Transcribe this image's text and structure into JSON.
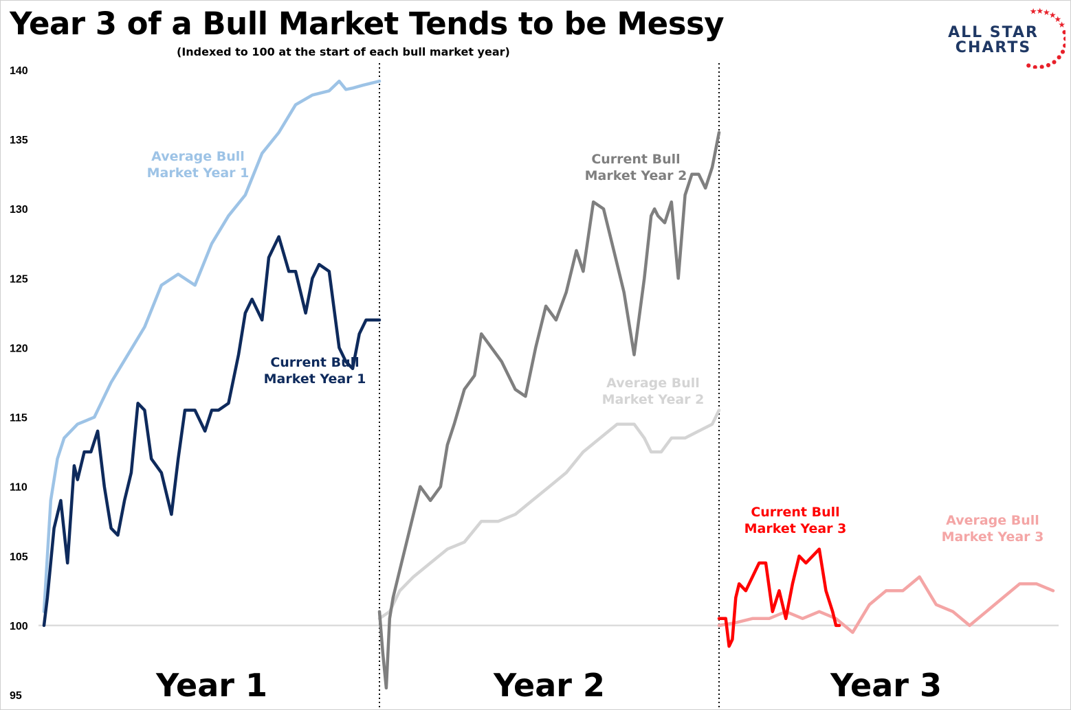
{
  "title": "Year 3 of a Bull Market Tends to be Messy",
  "subtitle": "(Indexed to 100 at the start of each bull market year)",
  "logo": {
    "line1": "ALL STAR",
    "line2": "CHARTS",
    "icon": "star-ring-icon",
    "color": "#1f3864",
    "star_color": "#e8202a"
  },
  "chart_data": {
    "type": "line",
    "y_ticks": [
      95,
      100,
      105,
      110,
      115,
      120,
      125,
      130,
      135,
      140
    ],
    "ylim": [
      95,
      141
    ],
    "baseline": 100,
    "grid": false,
    "segments": [
      {
        "label": "Year 1",
        "range": [
          0,
          1
        ]
      },
      {
        "label": "Year 2",
        "range": [
          1,
          2
        ]
      },
      {
        "label": "Year 3",
        "range": [
          2,
          3
        ]
      }
    ],
    "series": [
      {
        "name": "Average Bull Market Year 1",
        "label_lines": [
          "Average Bull",
          "Market Year 1"
        ],
        "color": "#9dc3e6",
        "segment": 0,
        "x": [
          0,
          0.02,
          0.04,
          0.06,
          0.1,
          0.15,
          0.2,
          0.25,
          0.3,
          0.35,
          0.4,
          0.45,
          0.5,
          0.55,
          0.6,
          0.65,
          0.7,
          0.75,
          0.8,
          0.85,
          0.88,
          0.9,
          0.92,
          0.95,
          1.0
        ],
        "y": [
          101,
          109,
          112,
          113.5,
          114.5,
          115,
          117.5,
          119.5,
          121.5,
          124.5,
          125.3,
          124.5,
          127.5,
          129.5,
          131,
          134,
          135.5,
          137.5,
          138.2,
          138.5,
          139.2,
          138.6,
          138.7,
          138.9,
          139.2
        ]
      },
      {
        "name": "Current Bull Market Year 1",
        "label_lines": [
          "Current Bull",
          "Market Year 1"
        ],
        "color": "#0e2a5c",
        "segment": 0,
        "x": [
          0,
          0.01,
          0.03,
          0.05,
          0.07,
          0.09,
          0.1,
          0.12,
          0.14,
          0.16,
          0.18,
          0.2,
          0.22,
          0.24,
          0.26,
          0.28,
          0.3,
          0.32,
          0.35,
          0.38,
          0.4,
          0.42,
          0.45,
          0.48,
          0.5,
          0.52,
          0.55,
          0.58,
          0.6,
          0.62,
          0.65,
          0.67,
          0.7,
          0.73,
          0.75,
          0.78,
          0.8,
          0.82,
          0.85,
          0.88,
          0.9,
          0.92,
          0.94,
          0.96,
          0.98,
          1.0
        ],
        "y": [
          100,
          102,
          107,
          109,
          104.5,
          111.5,
          110.5,
          112.5,
          112.5,
          114,
          110,
          107,
          106.5,
          109,
          111,
          116,
          115.5,
          112,
          111,
          108,
          112,
          115.5,
          115.5,
          114,
          115.5,
          115.5,
          116,
          119.5,
          122.5,
          123.5,
          122,
          126.5,
          128,
          125.5,
          125.5,
          122.5,
          125,
          126,
          125.5,
          120,
          119,
          118.5,
          121,
          122,
          122,
          122
        ]
      },
      {
        "name": "Current Bull Market Year 2",
        "label_lines": [
          "Current Bull",
          "Market Year 2"
        ],
        "color": "#7f7f7f",
        "segment": 1,
        "x": [
          1.0,
          1.01,
          1.02,
          1.03,
          1.04,
          1.06,
          1.08,
          1.1,
          1.12,
          1.15,
          1.18,
          1.2,
          1.22,
          1.25,
          1.28,
          1.3,
          1.33,
          1.36,
          1.4,
          1.43,
          1.46,
          1.49,
          1.52,
          1.55,
          1.58,
          1.6,
          1.63,
          1.66,
          1.69,
          1.72,
          1.75,
          1.78,
          1.8,
          1.81,
          1.82,
          1.84,
          1.86,
          1.88,
          1.9,
          1.92,
          1.94,
          1.96,
          1.98,
          2.0
        ],
        "y": [
          101,
          98,
          95.5,
          100.5,
          102,
          104,
          106,
          108,
          110,
          109,
          110,
          113,
          114.5,
          117,
          118,
          121,
          120,
          119,
          117,
          116.5,
          120,
          123,
          122,
          124,
          127,
          125.5,
          130.5,
          130,
          127,
          124,
          119.5,
          125,
          129.5,
          130,
          129.5,
          129,
          130.5,
          125,
          131,
          132.5,
          132.5,
          131.5,
          133,
          135.5
        ]
      },
      {
        "name": "Average Bull Market Year 2",
        "label_lines": [
          "Average Bull",
          "Market Year 2"
        ],
        "color": "#d4d4d4",
        "segment": 1,
        "x": [
          1.0,
          1.03,
          1.06,
          1.1,
          1.15,
          1.2,
          1.25,
          1.3,
          1.35,
          1.4,
          1.45,
          1.5,
          1.55,
          1.6,
          1.65,
          1.7,
          1.75,
          1.78,
          1.8,
          1.83,
          1.86,
          1.9,
          1.94,
          1.98,
          2.0
        ],
        "y": [
          100.5,
          101,
          102.5,
          103.5,
          104.5,
          105.5,
          106,
          107.5,
          107.5,
          108,
          109,
          110,
          111,
          112.5,
          113.5,
          114.5,
          114.5,
          113.5,
          112.5,
          112.5,
          113.5,
          113.5,
          114,
          114.5,
          115.5
        ]
      },
      {
        "name": "Current Bull Market Year 3",
        "label_lines": [
          "Current Bull",
          "Market Year 3"
        ],
        "color": "#ff0000",
        "segment": 2,
        "x": [
          2.0,
          2.01,
          2.02,
          2.03,
          2.04,
          2.05,
          2.06,
          2.08,
          2.1,
          2.12,
          2.14,
          2.16,
          2.18,
          2.2,
          2.22,
          2.24,
          2.26,
          2.28,
          2.3,
          2.32,
          2.34,
          2.35,
          2.36
        ],
        "y": [
          100.5,
          100.5,
          100.5,
          98.5,
          99,
          102,
          103,
          102.5,
          103.5,
          104.5,
          104.5,
          101,
          102.5,
          100.5,
          103,
          105,
          104.5,
          105,
          105.5,
          102.5,
          101,
          100,
          100
        ]
      },
      {
        "name": "Average Bull Market Year 3",
        "label_lines": [
          "Average Bull",
          "Market Year 3"
        ],
        "color": "#f4a5a5",
        "segment": 2,
        "x": [
          2.0,
          2.05,
          2.1,
          2.15,
          2.2,
          2.25,
          2.3,
          2.35,
          2.4,
          2.45,
          2.5,
          2.55,
          2.6,
          2.65,
          2.7,
          2.75,
          2.8,
          2.85,
          2.9,
          2.95,
          3.0
        ],
        "y": [
          100,
          100.2,
          100.5,
          100.5,
          101,
          100.5,
          101,
          100.5,
          99.5,
          101.5,
          102.5,
          102.5,
          103.5,
          101.5,
          101,
          100,
          101,
          102,
          103,
          103,
          102.5
        ]
      }
    ]
  }
}
